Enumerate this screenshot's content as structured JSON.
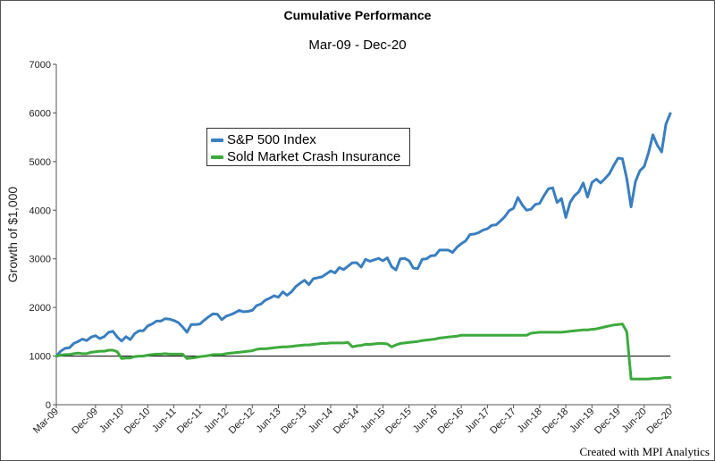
{
  "title": "Cumulative Performance",
  "subtitle": "Mar-09 - Dec-20",
  "credit": "Created with MPI Analytics",
  "colors": {
    "sp500": "#3a7ec0",
    "insurance": "#3daa3d",
    "baseline": "#000000",
    "axis": "#555555"
  },
  "chart_data": {
    "type": "line",
    "title": "Cumulative Performance",
    "subtitle": "Mar-09 - Dec-20",
    "ylabel": "Growth of $1,000",
    "xlabel": "",
    "ylim": [
      0,
      7000
    ],
    "yticks": [
      0,
      1000,
      2000,
      3000,
      4000,
      5000,
      6000,
      7000
    ],
    "grid": false,
    "reference_line": 1000,
    "legend_position": "upper-left-center",
    "xticks": [
      "Mar-09",
      "Dec-09",
      "Jun-10",
      "Dec-10",
      "Jun-11",
      "Dec-11",
      "Jun-12",
      "Dec-12",
      "Jun-13",
      "Dec-13",
      "Jun-14",
      "Dec-14",
      "Jun-15",
      "Dec-15",
      "Jun-16",
      "Dec-16",
      "Jun-17",
      "Dec-17",
      "Jun-18",
      "Dec-18",
      "Jun-19",
      "Dec-19",
      "Jun-20",
      "Dec-20"
    ],
    "x_start": "2009-03",
    "x_end": "2020-12",
    "series": [
      {
        "name": "S&P 500 Index",
        "color": "#3a7ec0",
        "points": [
          [
            "2009-03",
            1000
          ],
          [
            "2009-04",
            1100
          ],
          [
            "2009-05",
            1160
          ],
          [
            "2009-06",
            1170
          ],
          [
            "2009-07",
            1260
          ],
          [
            "2009-08",
            1300
          ],
          [
            "2009-09",
            1350
          ],
          [
            "2009-10",
            1320
          ],
          [
            "2009-11",
            1390
          ],
          [
            "2009-12",
            1420
          ],
          [
            "2010-01",
            1360
          ],
          [
            "2010-02",
            1400
          ],
          [
            "2010-03",
            1490
          ],
          [
            "2010-04",
            1510
          ],
          [
            "2010-05",
            1390
          ],
          [
            "2010-06",
            1310
          ],
          [
            "2010-07",
            1400
          ],
          [
            "2010-08",
            1340
          ],
          [
            "2010-09",
            1460
          ],
          [
            "2010-10",
            1520
          ],
          [
            "2010-11",
            1520
          ],
          [
            "2010-12",
            1620
          ],
          [
            "2011-01",
            1660
          ],
          [
            "2011-02",
            1720
          ],
          [
            "2011-03",
            1720
          ],
          [
            "2011-04",
            1770
          ],
          [
            "2011-05",
            1760
          ],
          [
            "2011-06",
            1730
          ],
          [
            "2011-07",
            1690
          ],
          [
            "2011-08",
            1600
          ],
          [
            "2011-09",
            1490
          ],
          [
            "2011-10",
            1650
          ],
          [
            "2011-11",
            1650
          ],
          [
            "2011-12",
            1660
          ],
          [
            "2012-01",
            1740
          ],
          [
            "2012-02",
            1810
          ],
          [
            "2012-03",
            1870
          ],
          [
            "2012-04",
            1860
          ],
          [
            "2012-05",
            1750
          ],
          [
            "2012-06",
            1820
          ],
          [
            "2012-07",
            1850
          ],
          [
            "2012-08",
            1890
          ],
          [
            "2012-09",
            1940
          ],
          [
            "2012-10",
            1910
          ],
          [
            "2012-11",
            1920
          ],
          [
            "2012-12",
            1940
          ],
          [
            "2013-01",
            2040
          ],
          [
            "2013-02",
            2070
          ],
          [
            "2013-03",
            2150
          ],
          [
            "2013-04",
            2190
          ],
          [
            "2013-05",
            2240
          ],
          [
            "2013-06",
            2210
          ],
          [
            "2013-07",
            2320
          ],
          [
            "2013-08",
            2250
          ],
          [
            "2013-09",
            2320
          ],
          [
            "2013-10",
            2430
          ],
          [
            "2013-11",
            2500
          ],
          [
            "2013-12",
            2560
          ],
          [
            "2014-01",
            2470
          ],
          [
            "2014-02",
            2590
          ],
          [
            "2014-03",
            2610
          ],
          [
            "2014-04",
            2630
          ],
          [
            "2014-05",
            2690
          ],
          [
            "2014-06",
            2750
          ],
          [
            "2014-07",
            2710
          ],
          [
            "2014-08",
            2820
          ],
          [
            "2014-09",
            2780
          ],
          [
            "2014-10",
            2850
          ],
          [
            "2014-11",
            2920
          ],
          [
            "2014-12",
            2920
          ],
          [
            "2015-01",
            2830
          ],
          [
            "2015-02",
            2990
          ],
          [
            "2015-03",
            2950
          ],
          [
            "2015-04",
            2980
          ],
          [
            "2015-05",
            3010
          ],
          [
            "2015-06",
            2960
          ],
          [
            "2015-07",
            3020
          ],
          [
            "2015-08",
            2840
          ],
          [
            "2015-09",
            2770
          ],
          [
            "2015-10",
            3000
          ],
          [
            "2015-11",
            3010
          ],
          [
            "2015-12",
            2960
          ],
          [
            "2016-01",
            2810
          ],
          [
            "2016-02",
            2800
          ],
          [
            "2016-03",
            2990
          ],
          [
            "2016-04",
            3000
          ],
          [
            "2016-05",
            3060
          ],
          [
            "2016-06",
            3070
          ],
          [
            "2016-07",
            3180
          ],
          [
            "2016-08",
            3180
          ],
          [
            "2016-09",
            3180
          ],
          [
            "2016-10",
            3130
          ],
          [
            "2016-11",
            3240
          ],
          [
            "2016-12",
            3310
          ],
          [
            "2017-01",
            3370
          ],
          [
            "2017-02",
            3500
          ],
          [
            "2017-03",
            3510
          ],
          [
            "2017-04",
            3540
          ],
          [
            "2017-05",
            3590
          ],
          [
            "2017-06",
            3620
          ],
          [
            "2017-07",
            3690
          ],
          [
            "2017-08",
            3700
          ],
          [
            "2017-09",
            3780
          ],
          [
            "2017-10",
            3870
          ],
          [
            "2017-11",
            3990
          ],
          [
            "2017-12",
            4040
          ],
          [
            "2018-01",
            4260
          ],
          [
            "2018-02",
            4110
          ],
          [
            "2018-03",
            4000
          ],
          [
            "2018-04",
            4020
          ],
          [
            "2018-05",
            4120
          ],
          [
            "2018-06",
            4140
          ],
          [
            "2018-07",
            4300
          ],
          [
            "2018-08",
            4440
          ],
          [
            "2018-09",
            4460
          ],
          [
            "2018-10",
            4160
          ],
          [
            "2018-11",
            4240
          ],
          [
            "2018-12",
            3850
          ],
          [
            "2019-01",
            4160
          ],
          [
            "2019-02",
            4300
          ],
          [
            "2019-03",
            4380
          ],
          [
            "2019-04",
            4560
          ],
          [
            "2019-05",
            4270
          ],
          [
            "2019-06",
            4570
          ],
          [
            "2019-07",
            4640
          ],
          [
            "2019-08",
            4560
          ],
          [
            "2019-09",
            4650
          ],
          [
            "2019-10",
            4750
          ],
          [
            "2019-11",
            4920
          ],
          [
            "2019-12",
            5070
          ],
          [
            "2020-01",
            5060
          ],
          [
            "2020-02",
            4650
          ],
          [
            "2020-03",
            4070
          ],
          [
            "2020-04",
            4590
          ],
          [
            "2020-05",
            4810
          ],
          [
            "2020-06",
            4900
          ],
          [
            "2020-07",
            5180
          ],
          [
            "2020-08",
            5550
          ],
          [
            "2020-09",
            5340
          ],
          [
            "2020-10",
            5200
          ],
          [
            "2020-11",
            5770
          ],
          [
            "2020-12",
            5990
          ]
        ]
      },
      {
        "name": "Sold Market Crash Insurance",
        "color": "#3daa3d",
        "points": [
          [
            "2009-03",
            1000
          ],
          [
            "2009-04",
            1020
          ],
          [
            "2009-05",
            1030
          ],
          [
            "2009-06",
            1030
          ],
          [
            "2009-07",
            1050
          ],
          [
            "2009-08",
            1060
          ],
          [
            "2009-09",
            1050
          ],
          [
            "2009-10",
            1050
          ],
          [
            "2009-11",
            1080
          ],
          [
            "2009-12",
            1090
          ],
          [
            "2010-01",
            1100
          ],
          [
            "2010-02",
            1100
          ],
          [
            "2010-03",
            1120
          ],
          [
            "2010-04",
            1120
          ],
          [
            "2010-05",
            1090
          ],
          [
            "2010-06",
            950
          ],
          [
            "2010-07",
            960
          ],
          [
            "2010-08",
            960
          ],
          [
            "2010-09",
            990
          ],
          [
            "2010-10",
            1000
          ],
          [
            "2010-11",
            1000
          ],
          [
            "2010-12",
            1020
          ],
          [
            "2011-01",
            1030
          ],
          [
            "2011-02",
            1040
          ],
          [
            "2011-03",
            1040
          ],
          [
            "2011-04",
            1050
          ],
          [
            "2011-05",
            1040
          ],
          [
            "2011-06",
            1040
          ],
          [
            "2011-07",
            1040
          ],
          [
            "2011-08",
            1040
          ],
          [
            "2011-09",
            950
          ],
          [
            "2011-10",
            960
          ],
          [
            "2011-11",
            970
          ],
          [
            "2011-12",
            990
          ],
          [
            "2012-01",
            1000
          ],
          [
            "2012-02",
            1010
          ],
          [
            "2012-03",
            1030
          ],
          [
            "2012-04",
            1030
          ],
          [
            "2012-05",
            1030
          ],
          [
            "2012-06",
            1050
          ],
          [
            "2012-07",
            1060
          ],
          [
            "2012-08",
            1070
          ],
          [
            "2012-09",
            1080
          ],
          [
            "2012-10",
            1090
          ],
          [
            "2012-11",
            1100
          ],
          [
            "2012-12",
            1110
          ],
          [
            "2013-01",
            1140
          ],
          [
            "2013-02",
            1150
          ],
          [
            "2013-03",
            1150
          ],
          [
            "2013-04",
            1160
          ],
          [
            "2013-05",
            1170
          ],
          [
            "2013-06",
            1180
          ],
          [
            "2013-07",
            1190
          ],
          [
            "2013-08",
            1190
          ],
          [
            "2013-09",
            1200
          ],
          [
            "2013-10",
            1210
          ],
          [
            "2013-11",
            1220
          ],
          [
            "2013-12",
            1230
          ],
          [
            "2014-01",
            1230
          ],
          [
            "2014-02",
            1240
          ],
          [
            "2014-03",
            1250
          ],
          [
            "2014-04",
            1260
          ],
          [
            "2014-05",
            1260
          ],
          [
            "2014-06",
            1270
          ],
          [
            "2014-07",
            1270
          ],
          [
            "2014-08",
            1270
          ],
          [
            "2014-09",
            1270
          ],
          [
            "2014-10",
            1280
          ],
          [
            "2014-11",
            1190
          ],
          [
            "2014-12",
            1210
          ],
          [
            "2015-01",
            1220
          ],
          [
            "2015-02",
            1240
          ],
          [
            "2015-03",
            1240
          ],
          [
            "2015-04",
            1250
          ],
          [
            "2015-05",
            1260
          ],
          [
            "2015-06",
            1260
          ],
          [
            "2015-07",
            1250
          ],
          [
            "2015-08",
            1190
          ],
          [
            "2015-09",
            1230
          ],
          [
            "2015-10",
            1260
          ],
          [
            "2015-11",
            1270
          ],
          [
            "2015-12",
            1280
          ],
          [
            "2016-01",
            1290
          ],
          [
            "2016-02",
            1300
          ],
          [
            "2016-03",
            1320
          ],
          [
            "2016-04",
            1330
          ],
          [
            "2016-05",
            1340
          ],
          [
            "2016-06",
            1350
          ],
          [
            "2016-07",
            1370
          ],
          [
            "2016-08",
            1380
          ],
          [
            "2016-09",
            1390
          ],
          [
            "2016-10",
            1400
          ],
          [
            "2016-11",
            1410
          ],
          [
            "2016-12",
            1430
          ],
          [
            "2017-01",
            1430
          ],
          [
            "2017-02",
            1430
          ],
          [
            "2017-03",
            1430
          ],
          [
            "2017-04",
            1430
          ],
          [
            "2017-05",
            1430
          ],
          [
            "2017-06",
            1430
          ],
          [
            "2017-07",
            1430
          ],
          [
            "2017-08",
            1430
          ],
          [
            "2017-09",
            1430
          ],
          [
            "2017-10",
            1430
          ],
          [
            "2017-11",
            1430
          ],
          [
            "2017-12",
            1430
          ],
          [
            "2018-01",
            1430
          ],
          [
            "2018-02",
            1430
          ],
          [
            "2018-03",
            1430
          ],
          [
            "2018-04",
            1470
          ],
          [
            "2018-05",
            1480
          ],
          [
            "2018-06",
            1490
          ],
          [
            "2018-07",
            1490
          ],
          [
            "2018-08",
            1490
          ],
          [
            "2018-09",
            1490
          ],
          [
            "2018-10",
            1490
          ],
          [
            "2018-11",
            1490
          ],
          [
            "2018-12",
            1500
          ],
          [
            "2019-01",
            1510
          ],
          [
            "2019-02",
            1520
          ],
          [
            "2019-03",
            1530
          ],
          [
            "2019-04",
            1540
          ],
          [
            "2019-05",
            1540
          ],
          [
            "2019-06",
            1550
          ],
          [
            "2019-07",
            1560
          ],
          [
            "2019-08",
            1580
          ],
          [
            "2019-09",
            1600
          ],
          [
            "2019-10",
            1620
          ],
          [
            "2019-11",
            1640
          ],
          [
            "2019-12",
            1650
          ],
          [
            "2020-01",
            1660
          ],
          [
            "2020-02",
            1500
          ],
          [
            "2020-03",
            530
          ],
          [
            "2020-04",
            530
          ],
          [
            "2020-05",
            530
          ],
          [
            "2020-06",
            530
          ],
          [
            "2020-07",
            530
          ],
          [
            "2020-08",
            540
          ],
          [
            "2020-09",
            540
          ],
          [
            "2020-10",
            550
          ],
          [
            "2020-11",
            560
          ],
          [
            "2020-12",
            560
          ]
        ]
      }
    ]
  }
}
